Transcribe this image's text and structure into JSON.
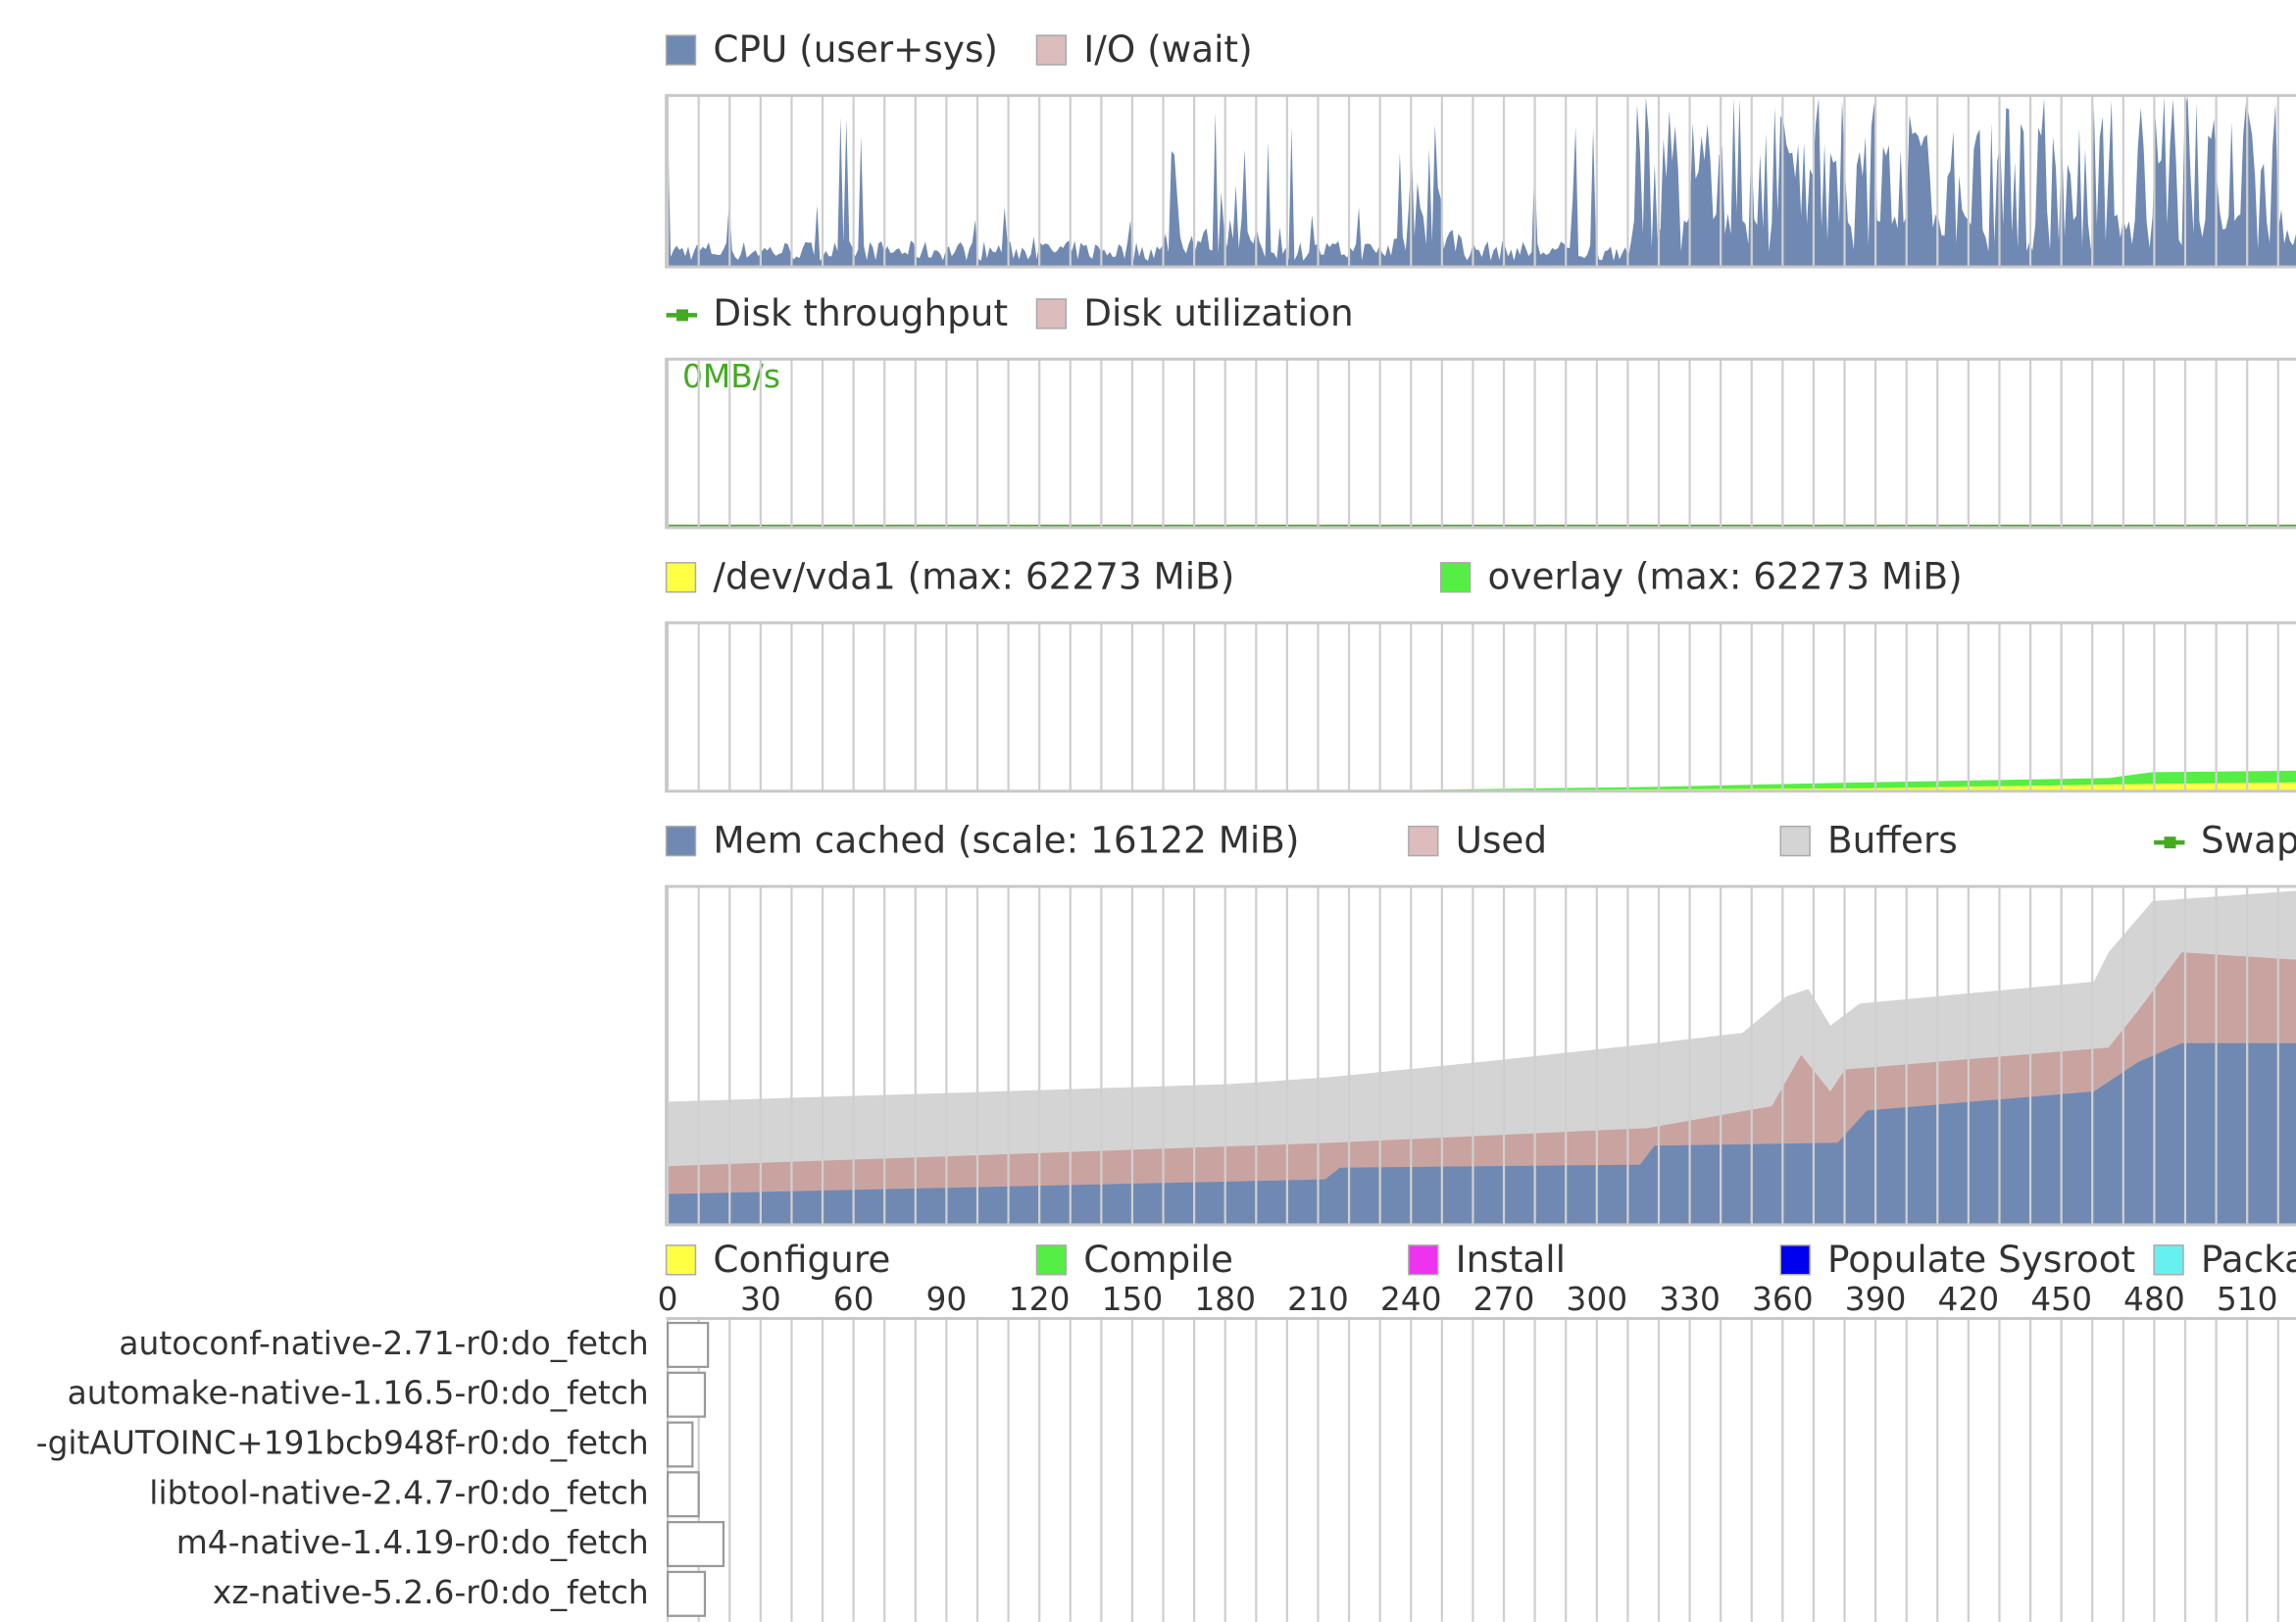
{
  "legends": {
    "cpu": [
      {
        "label": "CPU (user+sys)",
        "color": "#7089b2"
      },
      {
        "label": "I/O (wait)",
        "color": "#dcbcbc"
      }
    ],
    "disk": [
      {
        "label": "Disk throughput",
        "color": "#44aa22",
        "marker": "line"
      },
      {
        "label": "Disk utilization",
        "color": "#dcbcbc"
      }
    ],
    "fs": [
      {
        "label": "/dev/vda1 (max: 62273 MiB)",
        "color": "#ffff44"
      },
      {
        "label": "overlay (max: 62273 MiB)",
        "color": "#55ee44"
      }
    ],
    "mem": [
      {
        "label": "Mem cached (scale: 16122 MiB)",
        "color": "#7089b2"
      },
      {
        "label": "Used",
        "color": "#dcbcbc"
      },
      {
        "label": "Buffers",
        "color": "#d4d4d4"
      },
      {
        "label": "Swap",
        "color": "#44aa22",
        "marker": "line"
      }
    ],
    "tasks": [
      {
        "label": "Configure",
        "color": "#ffff44"
      },
      {
        "label": "Compile",
        "color": "#55ee44"
      },
      {
        "label": "Install",
        "color": "#ee33ee"
      },
      {
        "label": "Populate Sysroot",
        "color": "#0000ee"
      },
      {
        "label": "Package",
        "color": "#66f0f0"
      }
    ]
  },
  "disk_label": "0MB/s",
  "timeline": {
    "ticks": [
      0,
      30,
      60,
      90,
      120,
      150,
      180,
      210,
      240,
      270,
      300,
      330,
      360,
      390,
      420,
      450,
      480,
      510
    ]
  },
  "tasks": [
    {
      "name": "autoconf-native-2.71-r0:do_fetch",
      "start": 0,
      "end": 13
    },
    {
      "name": "automake-native-1.16.5-r0:do_fetch",
      "start": 0,
      "end": 12
    },
    {
      "name": "-gitAUTOINC+191bcb948f-r0:do_fetch",
      "start": 0,
      "end": 8
    },
    {
      "name": "libtool-native-2.4.7-r0:do_fetch",
      "start": 0,
      "end": 10
    },
    {
      "name": "m4-native-1.4.19-r0:do_fetch",
      "start": 0,
      "end": 18
    },
    {
      "name": "xz-native-5.2.6-r0:do_fetch",
      "start": 0,
      "end": 12
    }
  ]
}
